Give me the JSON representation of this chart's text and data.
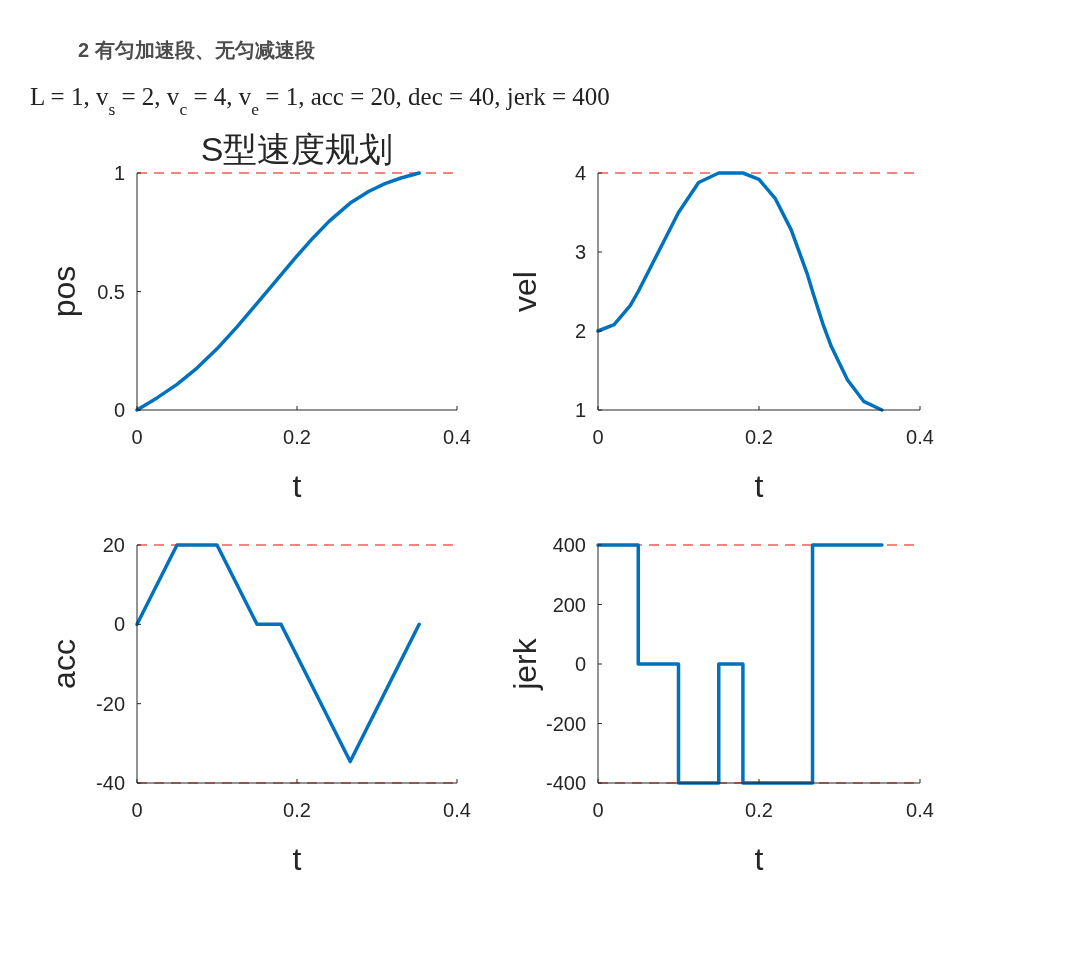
{
  "chart_data": [
    {
      "type": "line",
      "title": "S型速度规划",
      "annotations": [
        "2 有匀加速段、无匀减速段",
        "L = 1, v$_{s}$ = 2, v$_{c}$ = 4, v$_{e}$ = 1, acc = 20, dec = 40, jerk = 400"
      ],
      "xlabel": "t",
      "ylabel": "pos",
      "xlim": [
        0,
        0.4
      ],
      "xticks": [
        0,
        0.2,
        0.4
      ],
      "ylim": [
        0,
        1
      ],
      "yticks": [
        0,
        0.5,
        1
      ],
      "series": [
        {
          "color": "#0072bd",
          "x": [
            0,
            0.025,
            0.05,
            0.075,
            0.1,
            0.125,
            0.15,
            0.18,
            0.2,
            0.22,
            0.24,
            0.2665,
            0.29,
            0.31,
            0.33,
            0.3527
          ],
          "values": [
            0,
            0.051,
            0.108,
            0.177,
            0.258,
            0.351,
            0.45,
            0.57,
            0.65,
            0.726,
            0.796,
            0.873,
            0.923,
            0.955,
            0.979,
            1
          ]
        }
      ],
      "ref_lines": [
        {
          "axis": "y",
          "value": 1,
          "color": "#ff8080",
          "line_style": "dashed"
        }
      ],
      "grid": false
    },
    {
      "type": "line",
      "xlabel": "t",
      "ylabel": "vel",
      "xlim": [
        0,
        0.4
      ],
      "xticks": [
        0,
        0.2,
        0.4
      ],
      "ylim": [
        1,
        4
      ],
      "yticks": [
        1,
        2,
        3,
        4
      ],
      "series": [
        {
          "color": "#0072bd",
          "x": [
            0,
            0.02,
            0.04,
            0.05,
            0.075,
            0.1,
            0.125,
            0.15,
            0.18,
            0.2,
            0.22,
            0.24,
            0.26,
            0.2665,
            0.28,
            0.29,
            0.31,
            0.33,
            0.3527
          ],
          "values": [
            2,
            2.08,
            2.32,
            2.5,
            3,
            3.5,
            3.88,
            4,
            4,
            3.92,
            3.68,
            3.28,
            2.72,
            2.5,
            2.07,
            1.8,
            1.38,
            1.11,
            1
          ]
        }
      ],
      "ref_lines": [
        {
          "axis": "y",
          "value": 4,
          "color": "#ff8080",
          "line_style": "dashed"
        }
      ],
      "grid": false
    },
    {
      "type": "line",
      "xlabel": "t",
      "ylabel": "acc",
      "xlim": [
        0,
        0.4
      ],
      "xticks": [
        0,
        0.2,
        0.4
      ],
      "ylim": [
        -40,
        20
      ],
      "yticks": [
        -40,
        -20,
        0,
        20
      ],
      "series": [
        {
          "color": "#0072bd",
          "x": [
            0,
            0.05,
            0.1,
            0.15,
            0.18,
            0.2665,
            0.3527
          ],
          "values": [
            0,
            20,
            20,
            0,
            0,
            -34.6,
            0
          ]
        }
      ],
      "ref_lines": [
        {
          "axis": "y",
          "value": 20,
          "color": "#ff8080",
          "line_style": "dashed"
        },
        {
          "axis": "y",
          "value": -40,
          "color": "#ff8080",
          "line_style": "dashed"
        }
      ],
      "grid": false
    },
    {
      "type": "step",
      "xlabel": "t",
      "ylabel": "jerk",
      "xlim": [
        0,
        0.4
      ],
      "xticks": [
        0,
        0.2,
        0.4
      ],
      "ylim": [
        -400,
        400
      ],
      "yticks": [
        -400,
        -200,
        0,
        200,
        400
      ],
      "series": [
        {
          "color": "#0072bd",
          "x": [
            0,
            0.05,
            0.1,
            0.15,
            0.18,
            0.2665,
            0.3527
          ],
          "values": [
            400,
            0,
            -400,
            0,
            -400,
            400,
            400
          ]
        }
      ],
      "ref_lines": [
        {
          "axis": "y",
          "value": 400,
          "color": "#ff8080",
          "line_style": "dashed"
        },
        {
          "axis": "y",
          "value": -400,
          "color": "#ff8080",
          "line_style": "dashed"
        }
      ],
      "grid": false
    }
  ]
}
